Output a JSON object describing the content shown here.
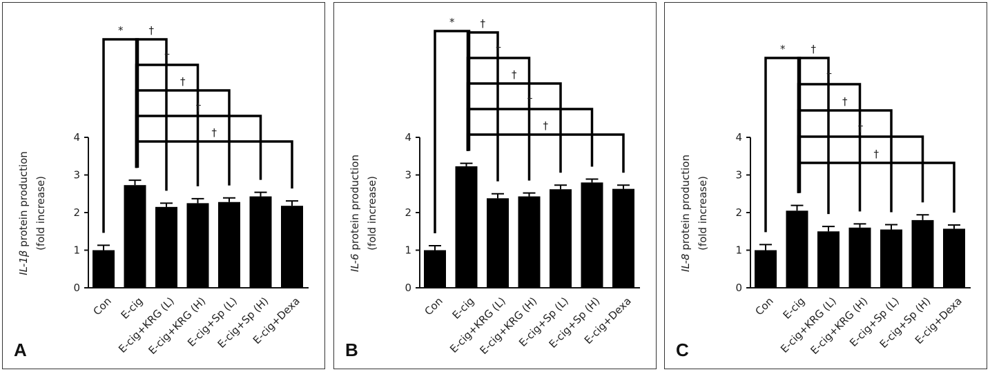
{
  "chart_data": [
    {
      "type": "bar",
      "panel_label": "A",
      "categories": [
        "Con",
        "E-cig",
        "E-cig+KRG (L)",
        "E-cig+KRG (H)",
        "E-cig+Sp (L)",
        "E-cig+Sp (H)",
        "E-cig+Dexa"
      ],
      "values": [
        1.0,
        2.73,
        2.15,
        2.25,
        2.28,
        2.43,
        2.18
      ],
      "errors": [
        0.13,
        0.13,
        0.1,
        0.12,
        0.11,
        0.11,
        0.13
      ],
      "ylabel_gene": "IL-1β",
      "ylabel_rest": " protein production",
      "ylabel_line2": "(fold increase)",
      "ylim": [
        0,
        4
      ],
      "yticks": [
        "0",
        "1",
        "2",
        "3",
        "4"
      ],
      "significance": [
        {
          "from": 0,
          "to": 1,
          "symbol": "*"
        },
        {
          "from": 1,
          "to": 2,
          "symbol": "†"
        },
        {
          "from": 1,
          "to": 3,
          "symbol": "†"
        },
        {
          "from": 1,
          "to": 4,
          "symbol": "†"
        },
        {
          "from": 1,
          "to": 5,
          "symbol": "†"
        },
        {
          "from": 1,
          "to": 6,
          "symbol": "†"
        }
      ]
    },
    {
      "type": "bar",
      "panel_label": "B",
      "categories": [
        "Con",
        "E-cig",
        "E-cig+KRG (L)",
        "E-cig+KRG (H)",
        "E-cig+Sp (L)",
        "E-cig+Sp (H)",
        "E-cig+Dexa"
      ],
      "values": [
        1.0,
        3.23,
        2.38,
        2.43,
        2.62,
        2.8,
        2.63
      ],
      "errors": [
        0.12,
        0.08,
        0.12,
        0.09,
        0.11,
        0.09,
        0.1
      ],
      "ylabel_gene": "IL-6",
      "ylabel_rest": " protein production",
      "ylabel_line2": "(fold increase)",
      "ylim": [
        0,
        4
      ],
      "yticks": [
        "0",
        "1",
        "2",
        "3",
        "4"
      ],
      "significance": [
        {
          "from": 0,
          "to": 1,
          "symbol": "*"
        },
        {
          "from": 1,
          "to": 2,
          "symbol": "†"
        },
        {
          "from": 1,
          "to": 3,
          "symbol": "†"
        },
        {
          "from": 1,
          "to": 4,
          "symbol": "†"
        },
        {
          "from": 1,
          "to": 5,
          "symbol": "†"
        },
        {
          "from": 1,
          "to": 6,
          "symbol": "†"
        }
      ]
    },
    {
      "type": "bar",
      "panel_label": "C",
      "categories": [
        "Con",
        "E-cig",
        "E-cig+KRG (L)",
        "E-cig+KRG (H)",
        "E-cig+Sp (L)",
        "E-cig+Sp (H)",
        "E-cig+Dexa"
      ],
      "values": [
        1.0,
        2.05,
        1.5,
        1.6,
        1.55,
        1.8,
        1.57
      ],
      "errors": [
        0.15,
        0.14,
        0.13,
        0.1,
        0.13,
        0.14,
        0.1
      ],
      "ylabel_gene": "IL-8",
      "ylabel_rest": " protein production",
      "ylabel_line2": "(fold increase)",
      "ylim": [
        0,
        4
      ],
      "yticks": [
        "0",
        "1",
        "2",
        "3",
        "4"
      ],
      "significance": [
        {
          "from": 0,
          "to": 1,
          "symbol": "*"
        },
        {
          "from": 1,
          "to": 2,
          "symbol": "†"
        },
        {
          "from": 1,
          "to": 3,
          "symbol": "†"
        },
        {
          "from": 1,
          "to": 4,
          "symbol": "†"
        },
        {
          "from": 1,
          "to": 5,
          "symbol": "†"
        },
        {
          "from": 1,
          "to": 6,
          "symbol": "†"
        }
      ]
    }
  ]
}
